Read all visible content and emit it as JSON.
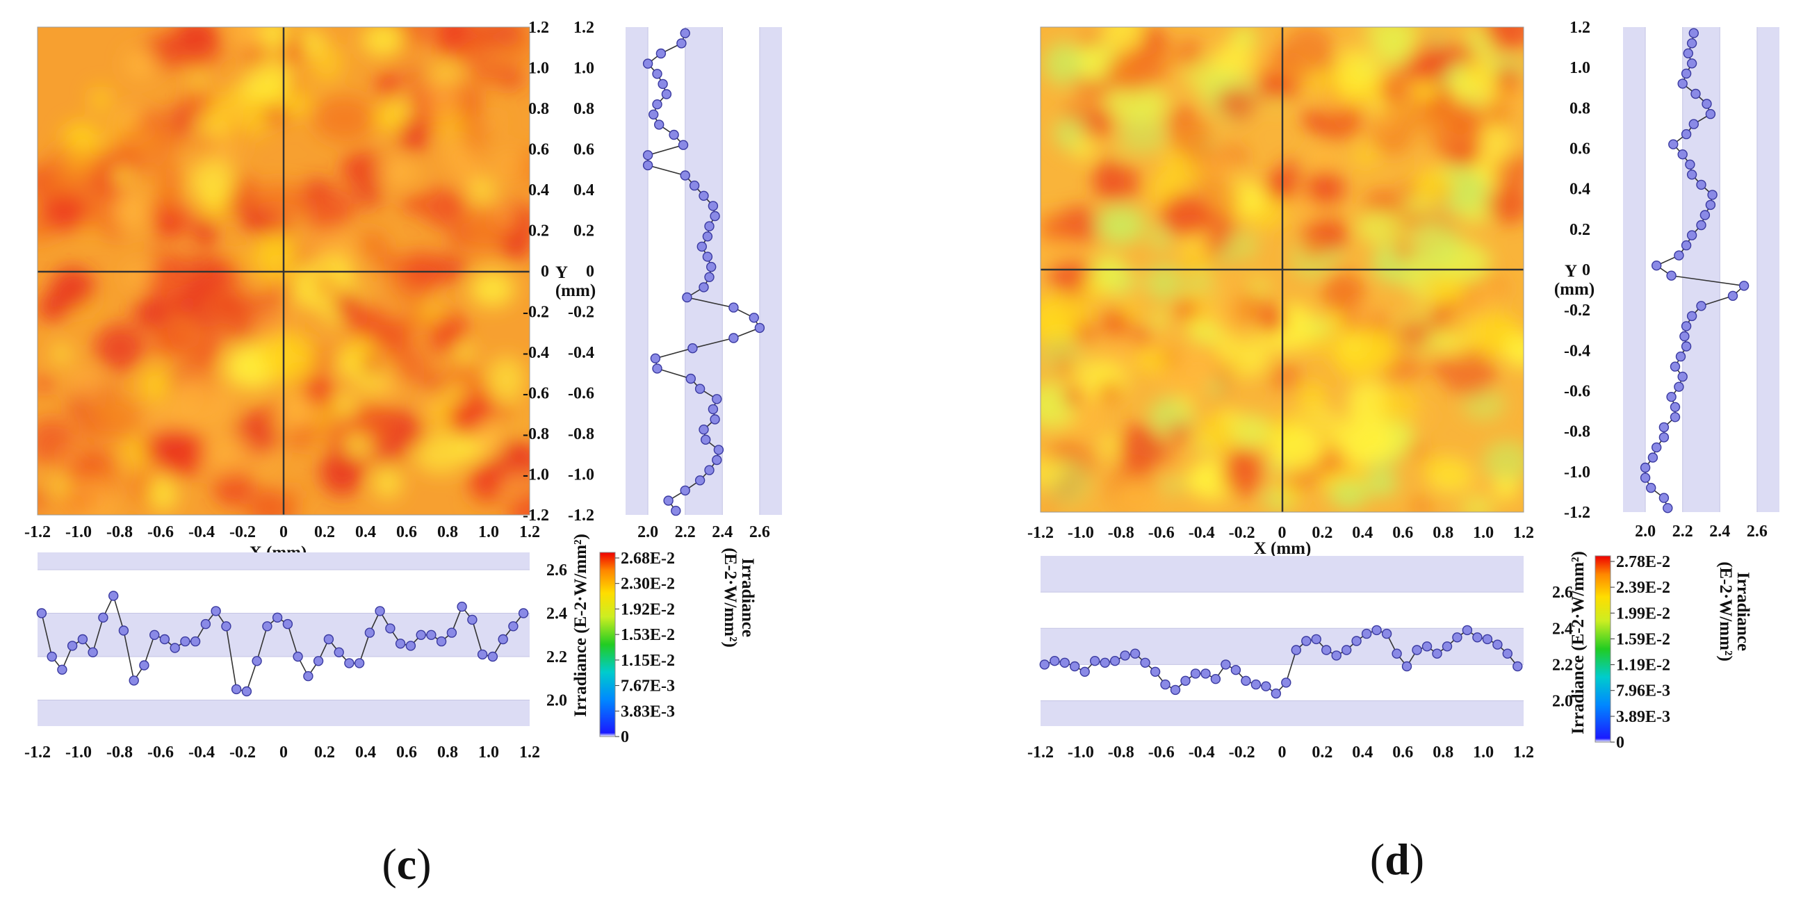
{
  "chart_data": [
    {
      "panel": "c",
      "type": "heatmap",
      "xlabel": "X (mm)",
      "ylabel": "Y (mm)",
      "xlim": [
        -1.2,
        1.2
      ],
      "ylim": [
        -1.2,
        1.2
      ],
      "x_ticks": [
        "-1.2",
        "-1.0",
        "-0.8",
        "-0.6",
        "-0.4",
        "-0.2",
        "0",
        "0.2",
        "0.4",
        "0.6",
        "0.8",
        "1.0",
        "1.2"
      ],
      "y_ticks_inner": [
        "1.2",
        "1.0",
        "0.8",
        "0.6",
        "0.4",
        "0.2",
        "0",
        "-0.2",
        "-0.4",
        "-0.6",
        "-0.8",
        "-1.0",
        "-1.2"
      ],
      "y_ticks_outer": [
        "1.2",
        "1.0",
        "0.8",
        "0.6",
        "0.4",
        "0.2",
        "0",
        "-0.2",
        "-0.4",
        "-0.6",
        "-0.8",
        "-1.0",
        "-1.2"
      ],
      "colorbar_label": "Irradiance (E-2·W/mm²)",
      "colorbar_ticks": [
        "2.68E-2",
        "2.30E-2",
        "1.92E-2",
        "1.53E-2",
        "1.15E-2",
        "7.67E-3",
        "3.83E-3",
        "0"
      ],
      "vertical_profile": {
        "xlabel_line1": "Irradiance",
        "xlabel_line2": "(E-2·W/mm²)",
        "xticks": [
          "2.0",
          "2.2",
          "2.4",
          "2.6"
        ],
        "xlim": [
          1.88,
          2.72
        ],
        "y": [
          1.17,
          1.12,
          1.07,
          1.02,
          0.97,
          0.92,
          0.87,
          0.82,
          0.77,
          0.72,
          0.67,
          0.62,
          0.57,
          0.52,
          0.47,
          0.42,
          0.37,
          0.32,
          0.27,
          0.22,
          0.17,
          0.12,
          0.07,
          0.02,
          -0.03,
          -0.08,
          -0.13,
          -0.18,
          -0.23,
          -0.28,
          -0.33,
          -0.38,
          -0.43,
          -0.48,
          -0.53,
          -0.58,
          -0.63,
          -0.68,
          -0.73,
          -0.78,
          -0.83,
          -0.88,
          -0.93,
          -0.98,
          -1.03,
          -1.08,
          -1.13,
          -1.18
        ],
        "values": [
          2.2,
          2.18,
          2.07,
          2.0,
          2.05,
          2.08,
          2.1,
          2.05,
          2.03,
          2.06,
          2.14,
          2.19,
          2.0,
          2.0,
          2.2,
          2.25,
          2.3,
          2.35,
          2.36,
          2.33,
          2.32,
          2.29,
          2.32,
          2.34,
          2.33,
          2.3,
          2.21,
          2.46,
          2.57,
          2.6,
          2.46,
          2.24,
          2.04,
          2.05,
          2.23,
          2.28,
          2.37,
          2.35,
          2.36,
          2.3,
          2.31,
          2.38,
          2.37,
          2.33,
          2.28,
          2.2,
          2.11,
          2.15
        ]
      },
      "horizontal_profile": {
        "ylabel": "Irradiance (E-2·W/mm²)",
        "yticks": [
          "2.0",
          "2.2",
          "2.4",
          "2.6"
        ],
        "ylim": [
          1.88,
          2.68
        ],
        "x": [
          -1.18,
          -1.13,
          -1.08,
          -1.03,
          -0.98,
          -0.93,
          -0.88,
          -0.83,
          -0.78,
          -0.73,
          -0.68,
          -0.63,
          -0.58,
          -0.53,
          -0.48,
          -0.43,
          -0.38,
          -0.33,
          -0.28,
          -0.23,
          -0.18,
          -0.13,
          -0.08,
          -0.03,
          0.02,
          0.07,
          0.12,
          0.17,
          0.22,
          0.27,
          0.32,
          0.37,
          0.42,
          0.47,
          0.52,
          0.57,
          0.62,
          0.67,
          0.72,
          0.77,
          0.82,
          0.87,
          0.92,
          0.97,
          1.02,
          1.07,
          1.12,
          1.17
        ],
        "values": [
          2.4,
          2.2,
          2.14,
          2.25,
          2.28,
          2.22,
          2.38,
          2.48,
          2.32,
          2.09,
          2.16,
          2.3,
          2.28,
          2.24,
          2.27,
          2.27,
          2.35,
          2.41,
          2.34,
          2.05,
          2.04,
          2.18,
          2.34,
          2.38,
          2.35,
          2.2,
          2.11,
          2.18,
          2.28,
          2.22,
          2.17,
          2.17,
          2.31,
          2.41,
          2.33,
          2.26,
          2.25,
          2.3,
          2.3,
          2.27,
          2.31,
          2.43,
          2.37,
          2.21,
          2.2,
          2.28,
          2.34,
          2.4
        ]
      }
    },
    {
      "panel": "d",
      "type": "heatmap",
      "xlabel": "X (mm)",
      "ylabel": "Y (mm)",
      "xlim": [
        -1.2,
        1.2
      ],
      "ylim": [
        -1.2,
        1.2
      ],
      "x_ticks": [
        "-1.2",
        "-1.0",
        "-0.8",
        "-0.6",
        "-0.4",
        "-0.2",
        "0",
        "0.2",
        "0.4",
        "0.6",
        "0.8",
        "1.0",
        "1.2"
      ],
      "y_ticks_inner": [],
      "y_ticks_outer": [
        "1.2",
        "1.0",
        "0.8",
        "0.6",
        "0.4",
        "0.2",
        "0",
        "-0.2",
        "-0.4",
        "-0.6",
        "-0.8",
        "-1.0",
        "-1.2"
      ],
      "colorbar_label": "Irradiance (E-2·W/mm²)",
      "colorbar_ticks": [
        "2.78E-2",
        "2.39E-2",
        "1.99E-2",
        "1.59E-2",
        "1.19E-2",
        "7.96E-3",
        "3.89E-3",
        "0"
      ],
      "vertical_profile": {
        "xlabel_line1": "Irradiance",
        "xlabel_line2": "(E-2·W/mm²)",
        "xticks": [
          "2.0",
          "2.2",
          "2.4",
          "2.6"
        ],
        "xlim": [
          1.88,
          2.72
        ],
        "y": [
          1.17,
          1.12,
          1.07,
          1.02,
          0.97,
          0.92,
          0.87,
          0.82,
          0.77,
          0.72,
          0.67,
          0.62,
          0.57,
          0.52,
          0.47,
          0.42,
          0.37,
          0.32,
          0.27,
          0.22,
          0.17,
          0.12,
          0.07,
          0.02,
          -0.03,
          -0.08,
          -0.13,
          -0.18,
          -0.23,
          -0.28,
          -0.33,
          -0.38,
          -0.43,
          -0.48,
          -0.53,
          -0.58,
          -0.63,
          -0.68,
          -0.73,
          -0.78,
          -0.83,
          -0.88,
          -0.93,
          -0.98,
          -1.03,
          -1.08,
          -1.13,
          -1.18
        ],
        "values": [
          2.26,
          2.25,
          2.23,
          2.25,
          2.22,
          2.2,
          2.27,
          2.33,
          2.35,
          2.26,
          2.22,
          2.15,
          2.2,
          2.24,
          2.25,
          2.3,
          2.36,
          2.35,
          2.32,
          2.3,
          2.25,
          2.22,
          2.18,
          2.06,
          2.14,
          2.53,
          2.47,
          2.3,
          2.25,
          2.22,
          2.21,
          2.22,
          2.19,
          2.16,
          2.2,
          2.18,
          2.14,
          2.16,
          2.16,
          2.1,
          2.1,
          2.06,
          2.04,
          2.0,
          2.0,
          2.03,
          2.1,
          2.12
        ]
      },
      "horizontal_profile": {
        "ylabel": "Irradiance (E-2·W/mm²)",
        "yticks": [
          "2.0",
          "2.2",
          "2.4",
          "2.6"
        ],
        "ylim": [
          1.86,
          2.8
        ],
        "x": [
          -1.18,
          -1.13,
          -1.08,
          -1.03,
          -0.98,
          -0.93,
          -0.88,
          -0.83,
          -0.78,
          -0.73,
          -0.68,
          -0.63,
          -0.58,
          -0.53,
          -0.48,
          -0.43,
          -0.38,
          -0.33,
          -0.28,
          -0.23,
          -0.18,
          -0.13,
          -0.08,
          -0.03,
          0.02,
          0.07,
          0.12,
          0.17,
          0.22,
          0.27,
          0.32,
          0.37,
          0.42,
          0.47,
          0.52,
          0.57,
          0.62,
          0.67,
          0.72,
          0.77,
          0.82,
          0.87,
          0.92,
          0.97,
          1.02,
          1.07,
          1.12,
          1.17
        ],
        "values": [
          2.2,
          2.22,
          2.21,
          2.19,
          2.16,
          2.22,
          2.21,
          2.22,
          2.25,
          2.26,
          2.21,
          2.16,
          2.09,
          2.06,
          2.11,
          2.15,
          2.15,
          2.12,
          2.2,
          2.17,
          2.11,
          2.09,
          2.08,
          2.04,
          2.1,
          2.28,
          2.33,
          2.34,
          2.28,
          2.25,
          2.28,
          2.33,
          2.37,
          2.39,
          2.37,
          2.26,
          2.19,
          2.28,
          2.3,
          2.26,
          2.3,
          2.35,
          2.39,
          2.35,
          2.34,
          2.31,
          2.26,
          2.19
        ]
      }
    }
  ]
}
